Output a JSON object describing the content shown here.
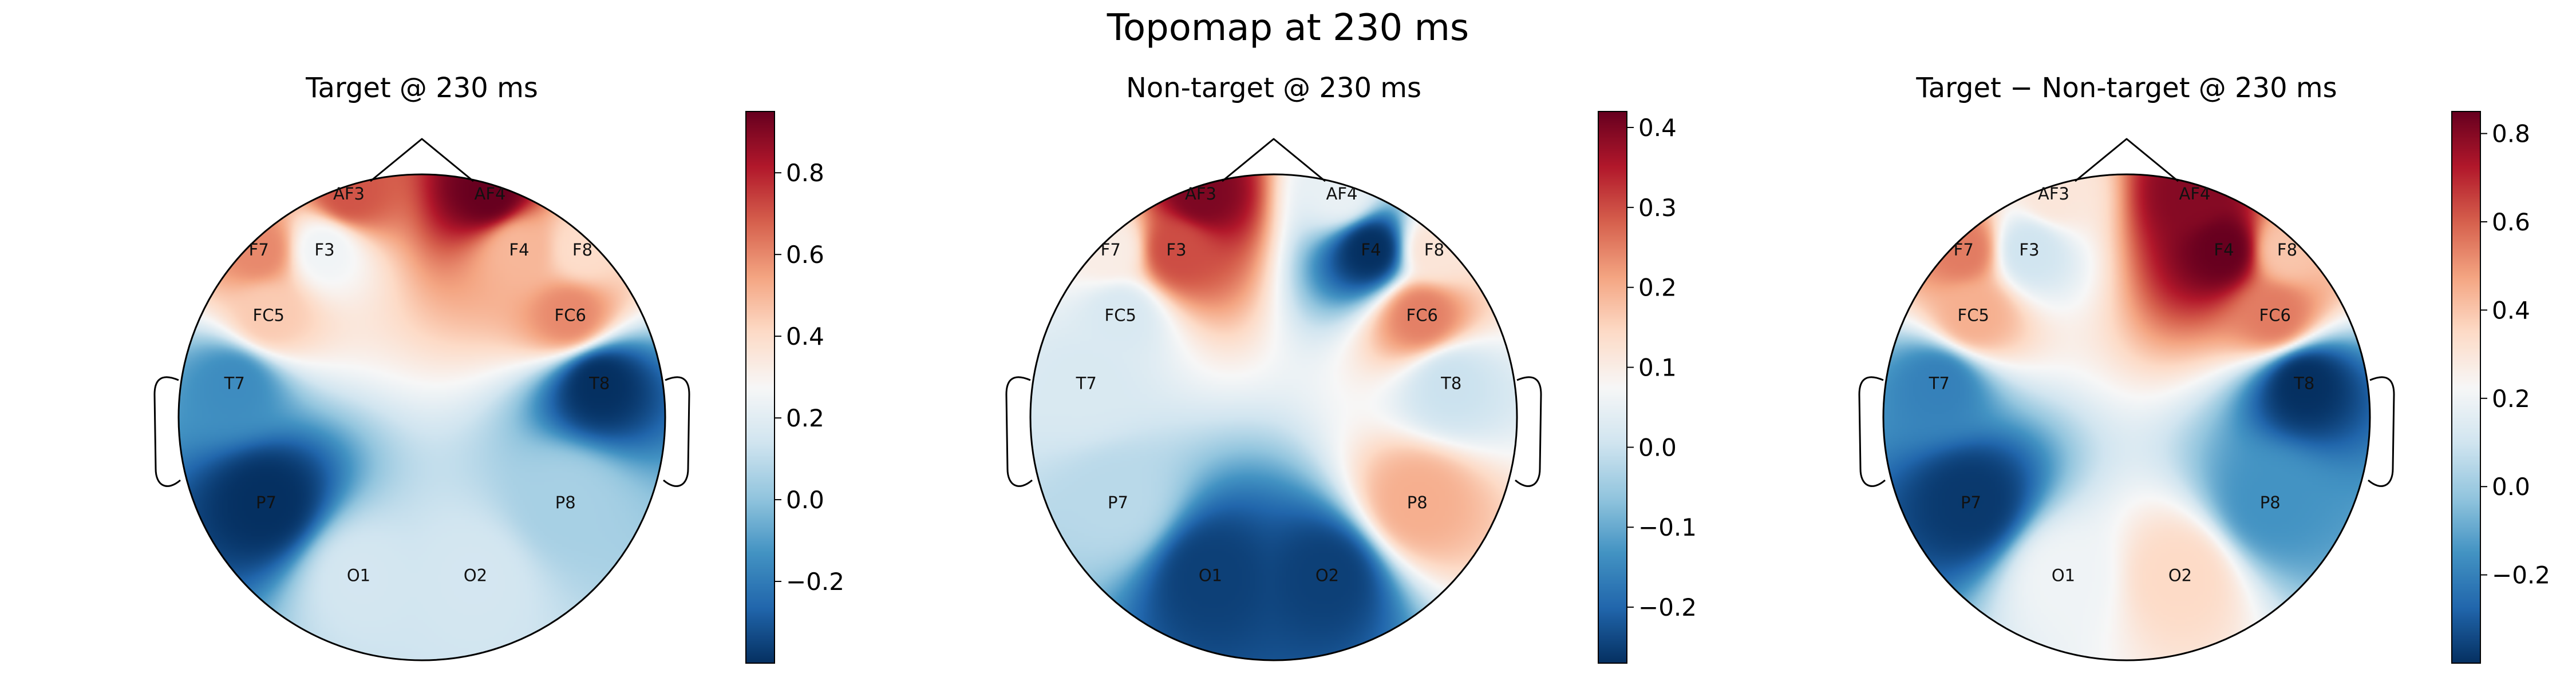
{
  "suptitle": "Topomap at 230 ms",
  "chart_data": [
    {
      "type": "heatmap",
      "title": "Target @ 230 ms",
      "colormap": "RdBu_r",
      "vlim": [
        -0.4,
        0.95
      ],
      "colorbar_ticks": [
        -0.2,
        0.0,
        0.2,
        0.4,
        0.6,
        0.8
      ],
      "colorbar_tick_labels": [
        "−0.2",
        "0.0",
        "0.2",
        "0.4",
        "0.6",
        "0.8"
      ],
      "channels": [
        {
          "name": "AF3",
          "value": 0.7
        },
        {
          "name": "AF4",
          "value": 0.95
        },
        {
          "name": "F7",
          "value": 0.6
        },
        {
          "name": "F3",
          "value": 0.25
        },
        {
          "name": "F4",
          "value": 0.5
        },
        {
          "name": "F8",
          "value": 0.4
        },
        {
          "name": "FC5",
          "value": 0.45
        },
        {
          "name": "FC6",
          "value": 0.6
        },
        {
          "name": "T7",
          "value": -0.15
        },
        {
          "name": "T8",
          "value": -0.4
        },
        {
          "name": "P7",
          "value": -0.4
        },
        {
          "name": "P8",
          "value": 0.05
        },
        {
          "name": "O1",
          "value": 0.15
        },
        {
          "name": "O2",
          "value": 0.15
        }
      ]
    },
    {
      "type": "heatmap",
      "title": "Non-target @ 230 ms",
      "colormap": "RdBu_r",
      "vlim": [
        -0.27,
        0.42
      ],
      "colorbar_ticks": [
        -0.2,
        -0.1,
        0.0,
        0.1,
        0.2,
        0.3,
        0.4
      ],
      "colorbar_tick_labels": [
        "−0.2",
        "−0.1",
        "0.0",
        "0.1",
        "0.2",
        "0.3",
        "0.4"
      ],
      "channels": [
        {
          "name": "AF3",
          "value": 0.4
        },
        {
          "name": "AF4",
          "value": 0.05
        },
        {
          "name": "F7",
          "value": 0.1
        },
        {
          "name": "F3",
          "value": 0.3
        },
        {
          "name": "F4",
          "value": -0.27
        },
        {
          "name": "F8",
          "value": 0.12
        },
        {
          "name": "FC5",
          "value": 0.02
        },
        {
          "name": "FC6",
          "value": 0.25
        },
        {
          "name": "T7",
          "value": 0.02
        },
        {
          "name": "T8",
          "value": 0.0
        },
        {
          "name": "P7",
          "value": -0.02
        },
        {
          "name": "P8",
          "value": 0.2
        },
        {
          "name": "O1",
          "value": -0.25
        },
        {
          "name": "O2",
          "value": -0.25
        }
      ]
    },
    {
      "type": "heatmap",
      "title": "Target − Non-target @ 230 ms",
      "colormap": "RdBu_r",
      "vlim": [
        -0.4,
        0.85
      ],
      "colorbar_ticks": [
        -0.2,
        0.0,
        0.2,
        0.4,
        0.6,
        0.8
      ],
      "colorbar_tick_labels": [
        "−0.2",
        "0.0",
        "0.2",
        "0.4",
        "0.6",
        "0.8"
      ],
      "channels": [
        {
          "name": "AF3",
          "value": 0.3
        },
        {
          "name": "AF4",
          "value": 0.8
        },
        {
          "name": "F7",
          "value": 0.55
        },
        {
          "name": "F3",
          "value": 0.1
        },
        {
          "name": "F4",
          "value": 0.85
        },
        {
          "name": "F8",
          "value": 0.4
        },
        {
          "name": "FC5",
          "value": 0.45
        },
        {
          "name": "FC6",
          "value": 0.55
        },
        {
          "name": "T7",
          "value": -0.2
        },
        {
          "name": "T8",
          "value": -0.4
        },
        {
          "name": "P7",
          "value": -0.38
        },
        {
          "name": "P8",
          "value": -0.15
        },
        {
          "name": "O1",
          "value": 0.2
        },
        {
          "name": "O2",
          "value": 0.35
        }
      ]
    }
  ]
}
